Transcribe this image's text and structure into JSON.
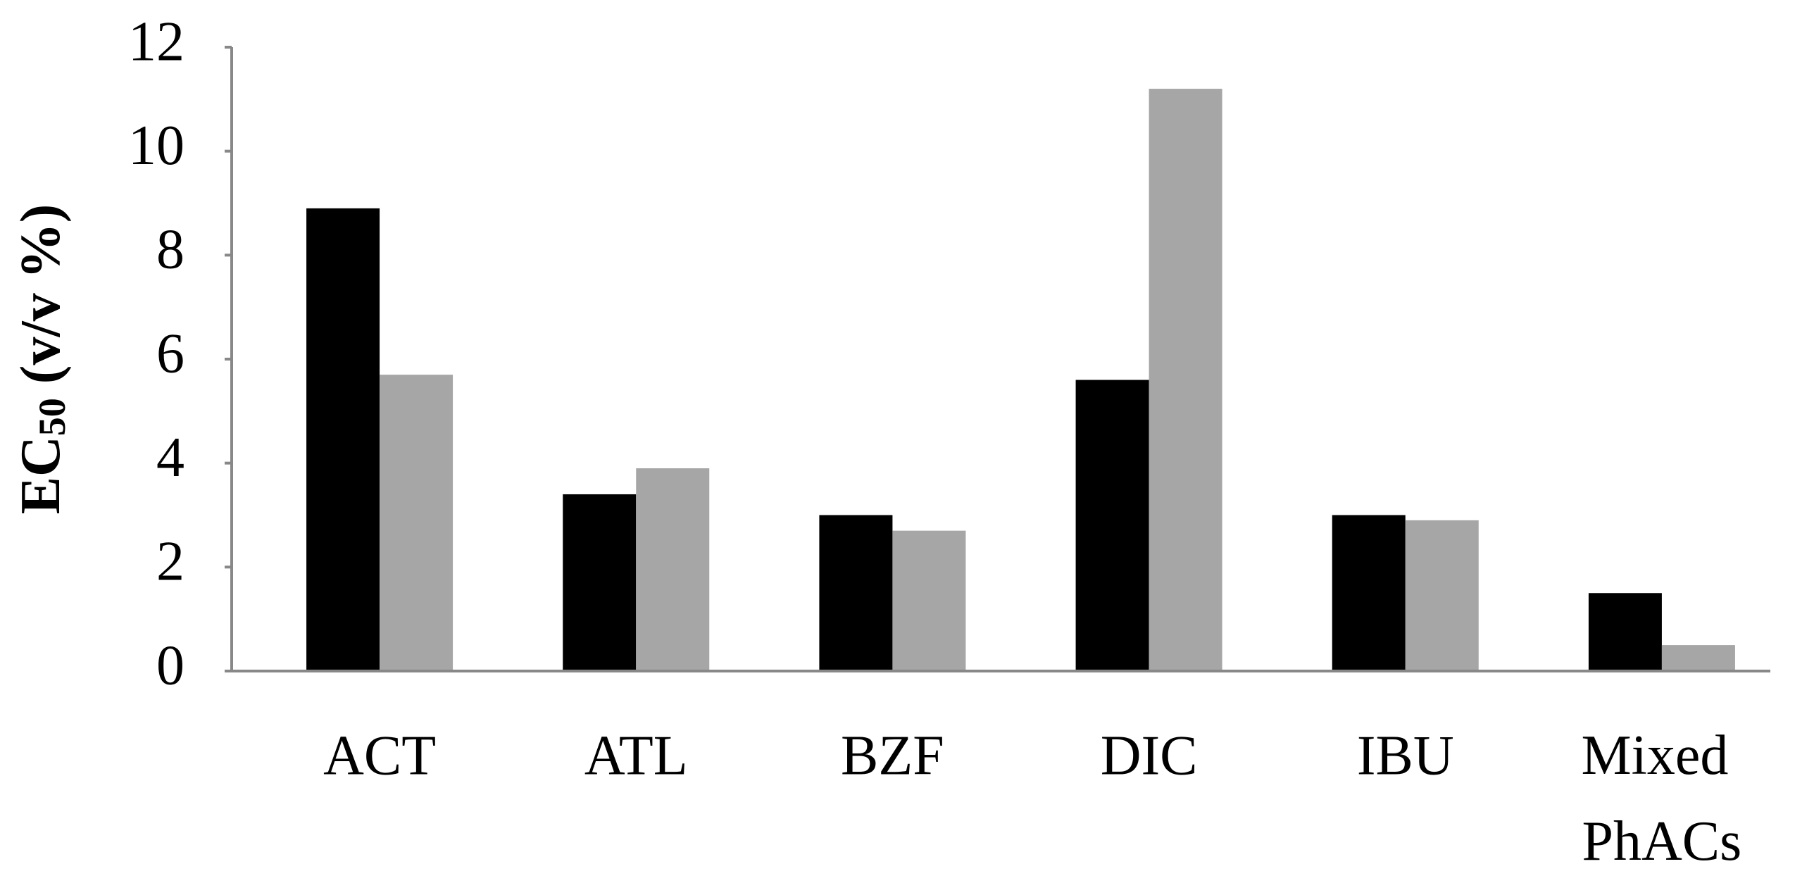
{
  "chart_data": {
    "type": "bar",
    "ylabel": {
      "main": "EC",
      "sub": "50",
      "rest": " (v/v %)"
    },
    "categories": [
      "ACT",
      "ATL",
      "BZF",
      "DIC",
      "IBU",
      "Mixed PhACs"
    ],
    "series": [
      {
        "color": "#000000",
        "values": [
          8.9,
          3.4,
          3.0,
          5.6,
          3.0,
          1.5
        ]
      },
      {
        "color": "#a6a6a6",
        "values": [
          5.7,
          3.9,
          2.7,
          11.2,
          2.9,
          0.5
        ]
      }
    ],
    "ylim": [
      0,
      12
    ],
    "yticks": [
      0,
      2,
      4,
      6,
      8,
      10,
      12
    ],
    "grid": false
  }
}
